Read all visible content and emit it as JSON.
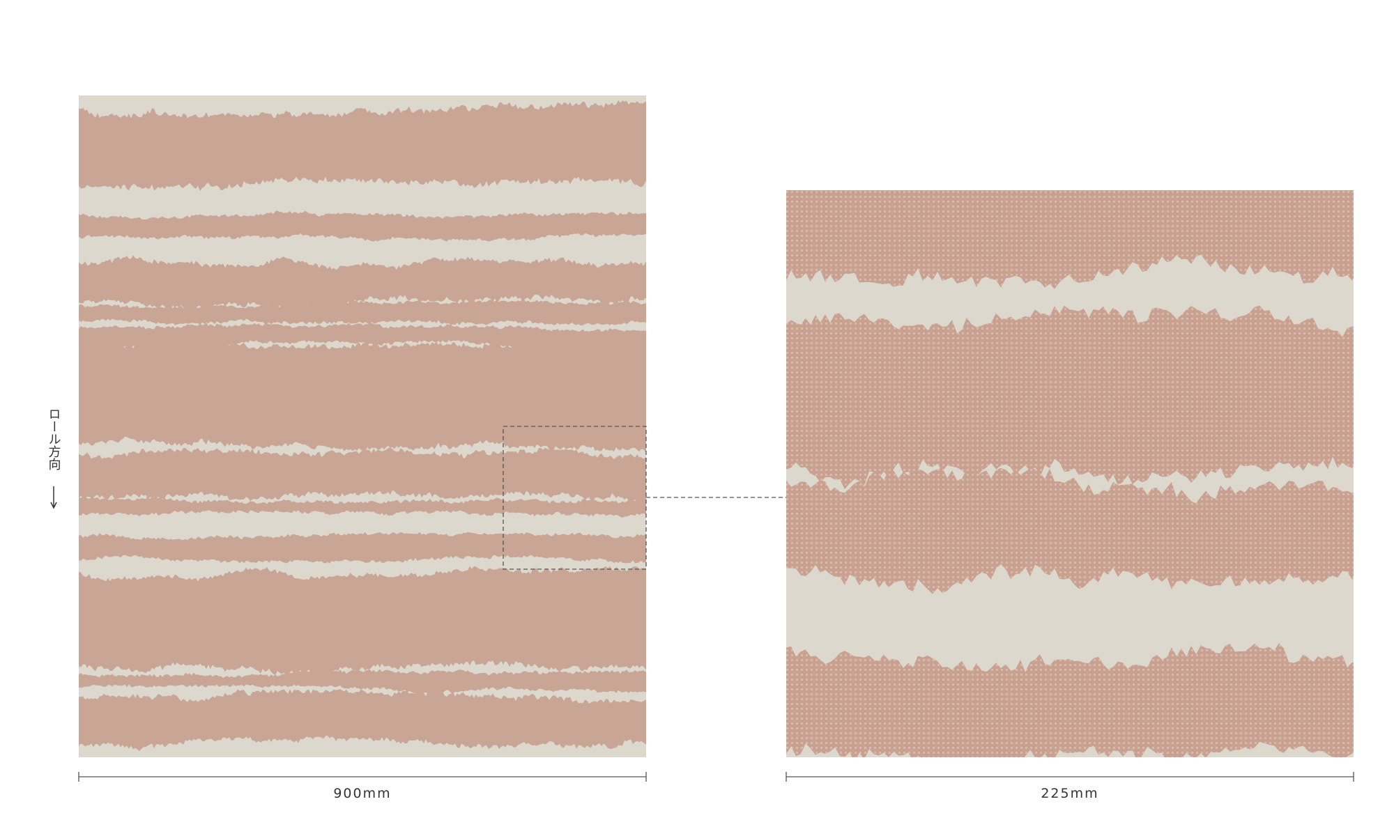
{
  "left_swatch": {
    "width_label": "900mm"
  },
  "right_swatch": {
    "width_label": "225mm"
  },
  "roll_direction": "ロール方向"
}
